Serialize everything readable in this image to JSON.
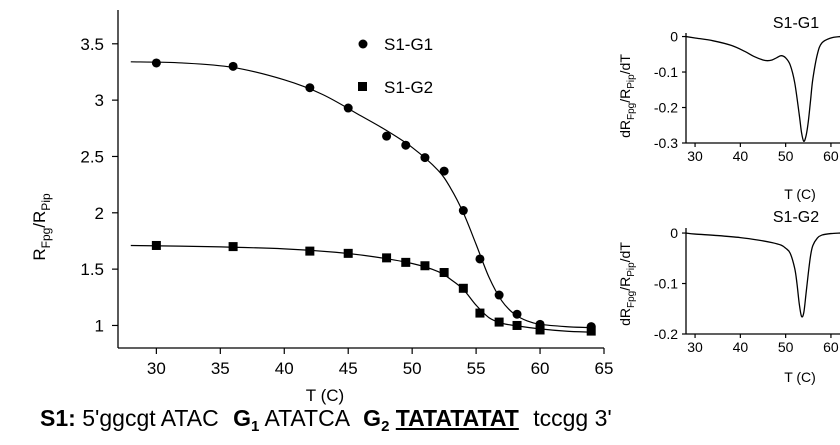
{
  "chart_data": [
    {
      "type": "scatter",
      "xlabel": "T (C)",
      "ylabel": "RFpg/RPip",
      "ylabel_parts": {
        "main1": "R",
        "sub1": "Fpg",
        "mid": "/R",
        "sub2": "Pip"
      },
      "xlim": [
        27,
        65
      ],
      "ylim": [
        0.8,
        3.8
      ],
      "x_ticks": [
        30,
        35,
        40,
        45,
        50,
        55,
        60,
        65
      ],
      "y_ticks": [
        1,
        1.5,
        2,
        2.5,
        3,
        3.5
      ],
      "y_tick_labels": [
        "1",
        "1.5",
        "2",
        "2.5",
        "3",
        "3.5"
      ],
      "legend_position": "top-right",
      "series": [
        {
          "name": "S1-G1",
          "marker": "circle",
          "x": [
            30,
            36,
            42,
            45,
            48,
            49.5,
            51,
            52.5,
            54,
            55.3,
            56.8,
            58.2,
            60,
            64
          ],
          "y": [
            3.33,
            3.3,
            3.11,
            2.93,
            2.68,
            2.6,
            2.49,
            2.37,
            2.02,
            1.59,
            1.27,
            1.1,
            1.01,
            0.99
          ],
          "fit": [
            [
              28,
              3.34
            ],
            [
              32,
              3.33
            ],
            [
              36,
              3.29
            ],
            [
              40,
              3.18
            ],
            [
              43,
              3.05
            ],
            [
              46,
              2.86
            ],
            [
              48,
              2.73
            ],
            [
              50,
              2.58
            ],
            [
              52,
              2.38
            ],
            [
              53,
              2.22
            ],
            [
              54,
              2.0
            ],
            [
              55,
              1.72
            ],
            [
              56,
              1.43
            ],
            [
              57,
              1.22
            ],
            [
              58,
              1.1
            ],
            [
              59,
              1.04
            ],
            [
              60,
              1.01
            ],
            [
              62,
              0.99
            ],
            [
              64,
              0.98
            ]
          ]
        },
        {
          "name": "S1-G2",
          "marker": "square",
          "x": [
            30,
            36,
            42,
            45,
            48,
            49.5,
            51,
            52.5,
            54,
            55.3,
            56.8,
            58.2,
            60,
            64
          ],
          "y": [
            1.71,
            1.7,
            1.66,
            1.64,
            1.6,
            1.56,
            1.53,
            1.47,
            1.33,
            1.11,
            1.03,
            1.0,
            0.96,
            0.95
          ],
          "fit": [
            [
              28,
              1.71
            ],
            [
              34,
              1.7
            ],
            [
              40,
              1.68
            ],
            [
              44,
              1.65
            ],
            [
              47,
              1.61
            ],
            [
              50,
              1.55
            ],
            [
              52,
              1.48
            ],
            [
              53,
              1.41
            ],
            [
              54,
              1.32
            ],
            [
              55,
              1.18
            ],
            [
              56,
              1.07
            ],
            [
              57,
              1.02
            ],
            [
              58,
              1.0
            ],
            [
              60,
              0.97
            ],
            [
              62,
              0.95
            ],
            [
              64,
              0.94
            ]
          ]
        }
      ]
    },
    {
      "type": "line",
      "title": "S1-G1",
      "xlabel": "T (C)",
      "ylabel": "dRFpg/RPip/dT",
      "ylabel_parts": {
        "main1": "dR",
        "sub1": "Fpg",
        "mid": "/R",
        "sub2": "Pip",
        "tail": "/dT"
      },
      "xlim": [
        28,
        62
      ],
      "ylim": [
        -0.3,
        0.01
      ],
      "x_ticks": [
        30,
        40,
        50,
        60
      ],
      "y_ticks": [
        0,
        -0.1,
        -0.2,
        -0.3
      ],
      "y_tick_labels": [
        "0",
        "-0.1",
        "-0.2",
        "-0.3"
      ],
      "series": [
        {
          "x": [
            28,
            30,
            34,
            38,
            41,
            43,
            45,
            46,
            47,
            48,
            49,
            50,
            51,
            52,
            53,
            53.5,
            54,
            54.5,
            55,
            55.5,
            56,
            57,
            58,
            60,
            62
          ],
          "y": [
            0.0,
            -0.004,
            -0.012,
            -0.025,
            -0.042,
            -0.056,
            -0.066,
            -0.068,
            -0.066,
            -0.06,
            -0.054,
            -0.06,
            -0.08,
            -0.13,
            -0.22,
            -0.27,
            -0.295,
            -0.28,
            -0.24,
            -0.18,
            -0.12,
            -0.05,
            -0.018,
            -0.004,
            0.0
          ]
        }
      ]
    },
    {
      "type": "line",
      "title": "S1-G2",
      "xlabel": "T (C)",
      "ylabel": "dRFpg/RPip/dT",
      "ylabel_parts": {
        "main1": "dR",
        "sub1": "Fpg",
        "mid": "/R",
        "sub2": "Pip",
        "tail": "/dT"
      },
      "xlim": [
        28,
        62
      ],
      "ylim": [
        -0.2,
        0.01
      ],
      "x_ticks": [
        30,
        40,
        50,
        60
      ],
      "y_ticks": [
        0,
        -0.1,
        -0.2
      ],
      "y_tick_labels": [
        "0",
        "-0.1",
        "-0.2"
      ],
      "series": [
        {
          "x": [
            28,
            30,
            35,
            40,
            44,
            47,
            49,
            50,
            51,
            52,
            52.5,
            53,
            53.5,
            54,
            54.5,
            55,
            55.5,
            56,
            57,
            58,
            60,
            62
          ],
          "y": [
            0.0,
            -0.002,
            -0.005,
            -0.009,
            -0.014,
            -0.019,
            -0.024,
            -0.03,
            -0.04,
            -0.07,
            -0.1,
            -0.14,
            -0.165,
            -0.158,
            -0.12,
            -0.08,
            -0.045,
            -0.025,
            -0.01,
            -0.004,
            -0.001,
            0.0
          ]
        }
      ]
    }
  ],
  "sequence": {
    "label": "S1:",
    "prefix": "5'ggcgt ATAC",
    "g1_main": "G",
    "g1_sub": "1",
    "middle": "ATATCA",
    "g2_main": "G",
    "g2_sub": "2",
    "underlined": "TATATATAT",
    "suffix": "tccgg 3'"
  }
}
